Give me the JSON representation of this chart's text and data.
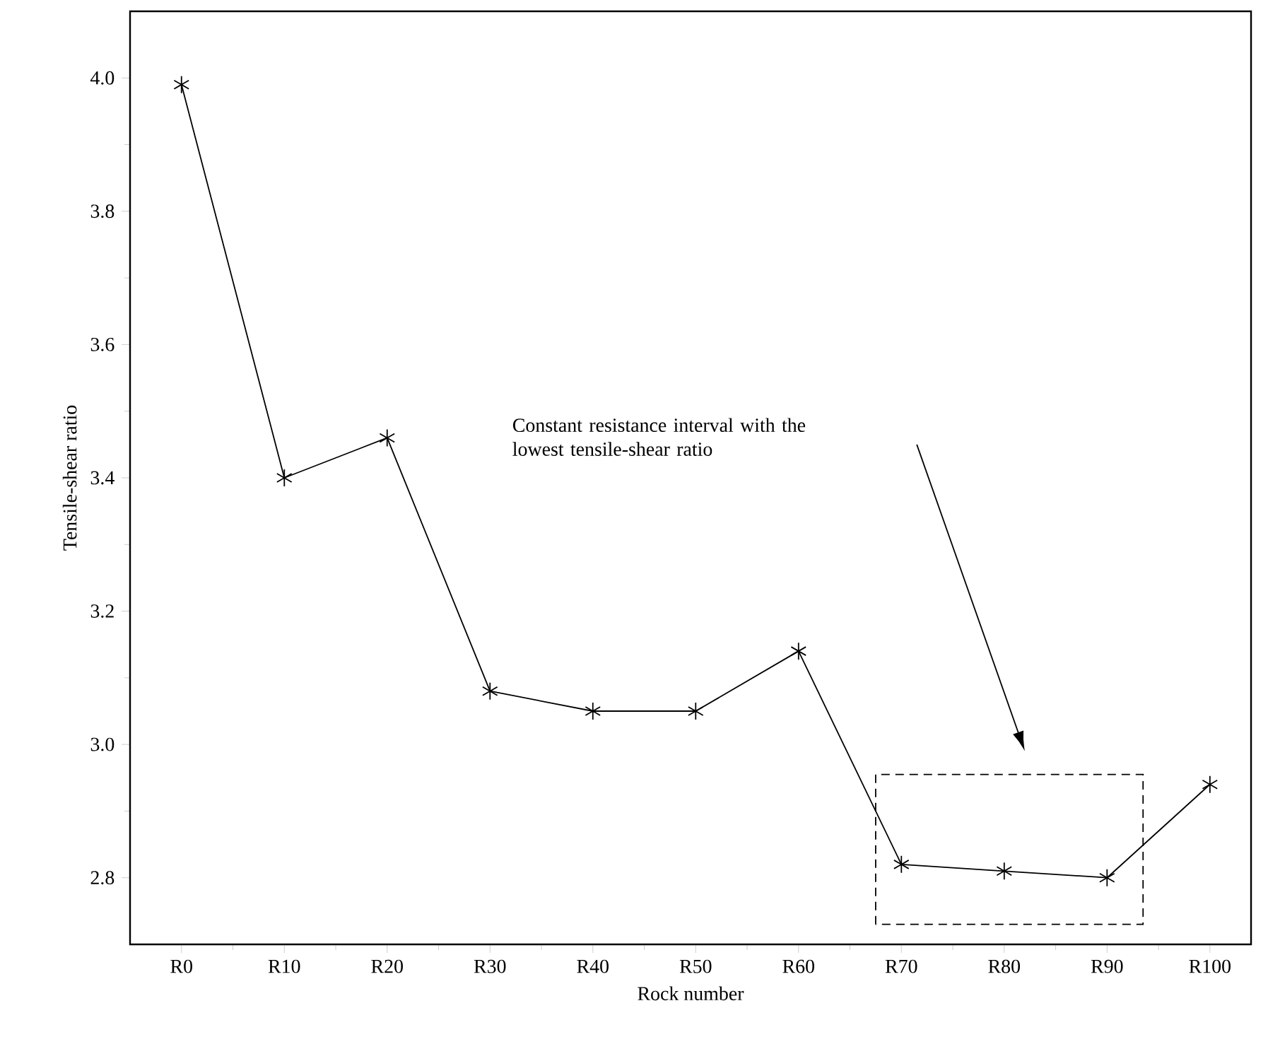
{
  "chart_data": {
    "type": "line",
    "xlabel": "Rock number",
    "ylabel": "Tensile-shear ratio",
    "categories": [
      "R0",
      "R10",
      "R20",
      "R30",
      "R40",
      "R50",
      "R60",
      "R70",
      "R80",
      "R90",
      "R100"
    ],
    "series": [
      {
        "color": "#000000",
        "values": [
          3.99,
          3.4,
          3.46,
          3.08,
          3.05,
          3.05,
          3.14,
          2.82,
          2.81,
          2.8,
          2.94
        ]
      }
    ],
    "ylim": [
      2.7,
      4.1
    ],
    "yticks": [
      2.8,
      {
        "value": 3,
        "label": "3.0"
      },
      3.2,
      3.4,
      3.6,
      3.8,
      {
        "value": 4,
        "label": "4.0"
      }
    ],
    "marker": "cross",
    "line_style": "solid",
    "grid": false,
    "annotations": [
      "Constant resistance interval with the lowest tensile-shear ratio"
    ]
  }
}
